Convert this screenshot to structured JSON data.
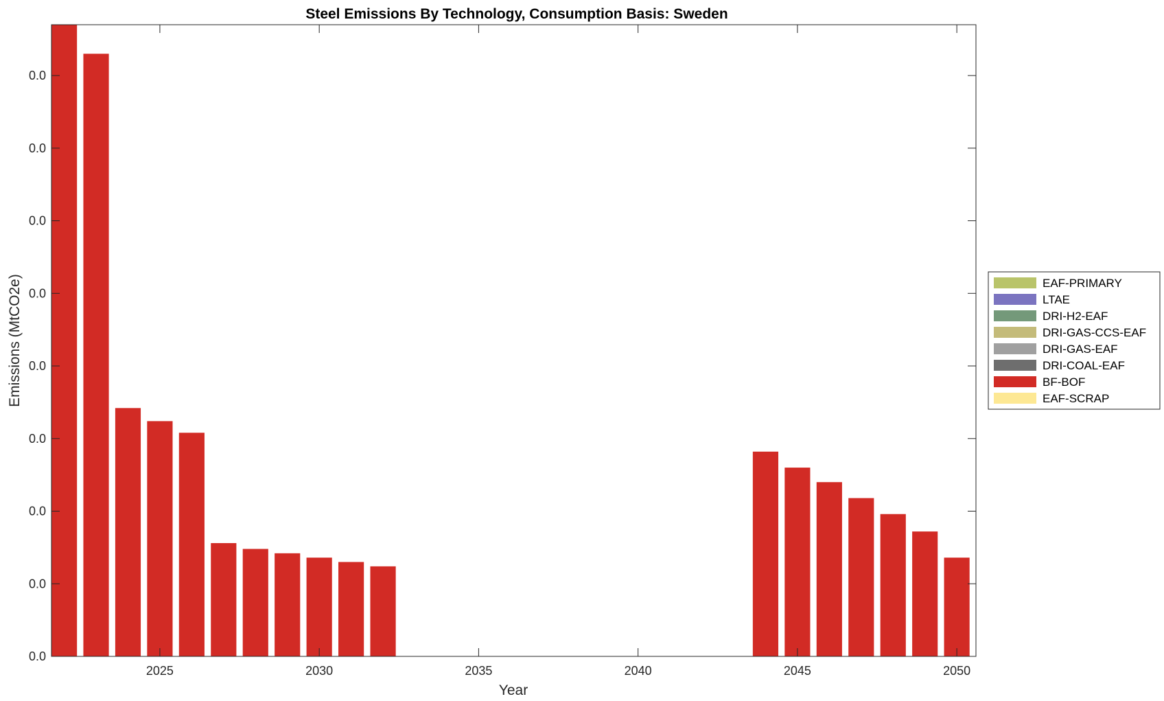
{
  "chart_data": {
    "type": "bar",
    "title": "Steel Emissions By Technology, Consumption Basis: Sweden",
    "xlabel": "Year",
    "ylabel": "Emissions (MtCO2e)",
    "x": [
      2022,
      2023,
      2024,
      2025,
      2026,
      2027,
      2028,
      2029,
      2030,
      2031,
      2032,
      2033,
      2034,
      2035,
      2036,
      2037,
      2038,
      2039,
      2040,
      2041,
      2042,
      2043,
      2044,
      2045,
      2046,
      2047,
      2048,
      2049,
      2050
    ],
    "xticks": [
      "2025",
      "2030",
      "2035",
      "2040",
      "2045",
      "2050"
    ],
    "xtick_values": [
      2025,
      2030,
      2035,
      2040,
      2045,
      2050
    ],
    "xlim": [
      2021.6,
      2050.6
    ],
    "ylim": [
      0,
      0.0435
    ],
    "yticks": [
      "0.0",
      "0.0",
      "0.0",
      "0.0",
      "0.0",
      "0.0",
      "0.0",
      "0.0",
      "0.0"
    ],
    "ytick_values": [
      0,
      0.005,
      0.01,
      0.015,
      0.02,
      0.025,
      0.03,
      0.035,
      0.04
    ],
    "grid": false,
    "legend_position": "right",
    "series": [
      {
        "name": "EAF-PRIMARY",
        "color": "#b9c46a",
        "values": [
          0,
          0,
          0,
          0,
          0,
          0,
          0,
          0,
          0,
          0,
          0,
          0,
          0,
          0,
          0,
          0,
          0,
          0,
          0,
          0,
          0,
          0,
          0,
          0,
          0,
          0,
          0,
          0,
          0
        ]
      },
      {
        "name": "LTAE",
        "color": "#7b74c0",
        "values": [
          0,
          0,
          0,
          0,
          0,
          0,
          0,
          0,
          0,
          0,
          0,
          0,
          0,
          0,
          0,
          0,
          0,
          0,
          0,
          0,
          0,
          0,
          0,
          0,
          0,
          0,
          0,
          0,
          0
        ]
      },
      {
        "name": "DRI-H2-EAF",
        "color": "#74997a",
        "values": [
          0,
          0,
          0,
          0,
          0,
          0,
          0,
          0,
          0,
          0,
          0,
          0,
          0,
          0,
          0,
          0,
          0,
          0,
          0,
          0,
          0,
          0,
          0,
          0,
          0,
          0,
          0,
          0,
          0
        ]
      },
      {
        "name": "DRI-GAS-CCS-EAF",
        "color": "#c4bb7a",
        "values": [
          0,
          0,
          0,
          0,
          0,
          0,
          0,
          0,
          0,
          0,
          0,
          0,
          0,
          0,
          0,
          0,
          0,
          0,
          0,
          0,
          0,
          0,
          0,
          0,
          0,
          0,
          0,
          0,
          0
        ]
      },
      {
        "name": "DRI-GAS-EAF",
        "color": "#a0a0a0",
        "values": [
          0,
          0,
          0,
          0,
          0,
          0,
          0,
          0,
          0,
          0,
          0,
          0,
          0,
          0,
          0,
          0,
          0,
          0,
          0,
          0,
          0,
          0,
          0,
          0,
          0,
          0,
          0,
          0,
          0
        ]
      },
      {
        "name": "DRI-COAL-EAF",
        "color": "#6e6e6e",
        "values": [
          0,
          0,
          0,
          0,
          0,
          0,
          0,
          0,
          0,
          0,
          0,
          0,
          0,
          0,
          0,
          0,
          0,
          0,
          0,
          0,
          0,
          0,
          0,
          0,
          0,
          0,
          0,
          0,
          0
        ]
      },
      {
        "name": "BF-BOF",
        "color": "#d22b25",
        "values": [
          0.0435,
          0.0415,
          0.0171,
          0.0162,
          0.0154,
          0.0078,
          0.0074,
          0.0071,
          0.0068,
          0.0065,
          0.0062,
          0,
          0,
          0,
          0,
          0,
          0,
          0,
          0,
          0,
          0,
          0,
          0.0141,
          0.013,
          0.012,
          0.0109,
          0.0098,
          0.0086,
          0.0068
        ]
      },
      {
        "name": "EAF-SCRAP",
        "color": "#fde894",
        "values": [
          0,
          0,
          0,
          0,
          0,
          0,
          0,
          0,
          0,
          0,
          0,
          0,
          0,
          0,
          0,
          0,
          0,
          0,
          0,
          0,
          0,
          0,
          0,
          0,
          0,
          0,
          0,
          0,
          0
        ]
      }
    ]
  }
}
